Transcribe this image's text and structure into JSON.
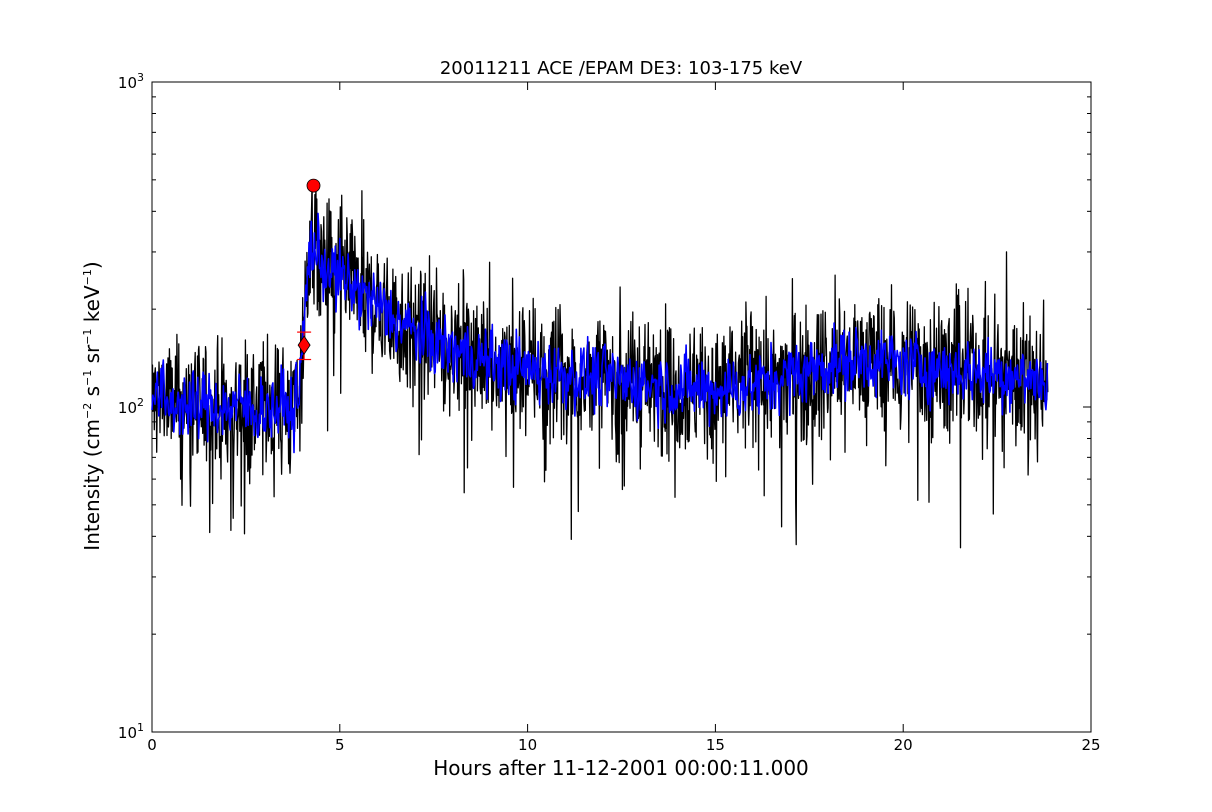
{
  "chart_data": {
    "type": "line",
    "title": "20011211 ACE /EPAM DE3: 103-175 keV",
    "xlabel": "Hours after 11-12-2001 00:00:11.000",
    "ylabel": {
      "prefix": "Intensity (cm",
      "sup1": "−2",
      "p2": " s",
      "sup2": "−1",
      "p3": " sr",
      "sup3": "−1",
      "p4": " keV",
      "sup4": "−1",
      "suffix": ")"
    },
    "xlim": [
      0,
      25
    ],
    "ylim": [
      10,
      1000
    ],
    "yscale": "log",
    "grid": false,
    "xticks": [
      {
        "value": 0,
        "label": "0"
      },
      {
        "value": 5,
        "label": "5"
      },
      {
        "value": 10,
        "label": "10"
      },
      {
        "value": 15,
        "label": "15"
      },
      {
        "value": 20,
        "label": "20"
      },
      {
        "value": 25,
        "label": "25"
      }
    ],
    "yticks": [
      {
        "value": 10,
        "base": "10",
        "exp": "1"
      },
      {
        "value": 100,
        "base": "10",
        "exp": "2"
      },
      {
        "value": 1000,
        "base": "10",
        "exp": "3"
      }
    ],
    "colors": {
      "raw": "#000000",
      "smoothed": "#0000ff",
      "marker": "#ff0000"
    },
    "series": [
      {
        "style": "raw",
        "color": "#000000",
        "x": [
          0,
          0.25,
          0.5,
          0.75,
          1.0,
          1.25,
          1.5,
          1.75,
          2.0,
          2.25,
          2.5,
          2.75,
          3.0,
          3.25,
          3.5,
          3.75,
          3.95,
          4.05,
          4.15,
          4.25,
          4.35,
          4.5,
          4.75,
          5.0,
          5.5,
          6.0,
          6.5,
          7.0,
          7.5,
          8.0,
          8.5,
          9.0,
          9.5,
          10.0,
          11.0,
          12.0,
          13.0,
          14.0,
          15.0,
          16.0,
          17.0,
          18.0,
          19.0,
          20.0,
          21.0,
          22.0,
          23.0,
          23.85
        ],
        "y": [
          105,
          110,
          100,
          105,
          98,
          100,
          104,
          100,
          98,
          102,
          100,
          96,
          100,
          98,
          102,
          96,
          120,
          180,
          260,
          330,
          300,
          280,
          260,
          250,
          225,
          205,
          185,
          170,
          158,
          150,
          143,
          138,
          134,
          130,
          126,
          122,
          118,
          115,
          113,
          116,
          125,
          135,
          140,
          135,
          130,
          128,
          125,
          120
        ]
      },
      {
        "style": "smoothed",
        "color": "#0000ff",
        "x": [
          0,
          0.25,
          0.5,
          0.75,
          1.0,
          1.25,
          1.5,
          1.75,
          2.0,
          2.25,
          2.5,
          2.75,
          3.0,
          3.25,
          3.5,
          3.75,
          3.95,
          4.05,
          4.15,
          4.25,
          4.35,
          4.5,
          4.75,
          5.0,
          5.5,
          6.0,
          6.5,
          7.0,
          7.5,
          8.0,
          8.5,
          9.0,
          9.5,
          10.0,
          11.0,
          12.0,
          13.0,
          14.0,
          15.0,
          16.0,
          17.0,
          18.0,
          19.0,
          20.0,
          21.0,
          22.0,
          23.0,
          23.85
        ],
        "y": [
          105,
          110,
          100,
          105,
          98,
          100,
          104,
          100,
          98,
          102,
          100,
          96,
          100,
          98,
          102,
          96,
          120,
          180,
          260,
          330,
          300,
          280,
          260,
          250,
          225,
          205,
          185,
          170,
          158,
          150,
          143,
          138,
          134,
          130,
          126,
          122,
          118,
          115,
          113,
          116,
          125,
          135,
          140,
          135,
          130,
          128,
          125,
          120
        ]
      }
    ],
    "markers": [
      {
        "kind": "onset",
        "shape": "diamond",
        "x": 4.05,
        "y": 155,
        "yerr": [
          140,
          170
        ]
      },
      {
        "kind": "peak",
        "shape": "circle",
        "x": 4.3,
        "y": 480
      }
    ]
  }
}
